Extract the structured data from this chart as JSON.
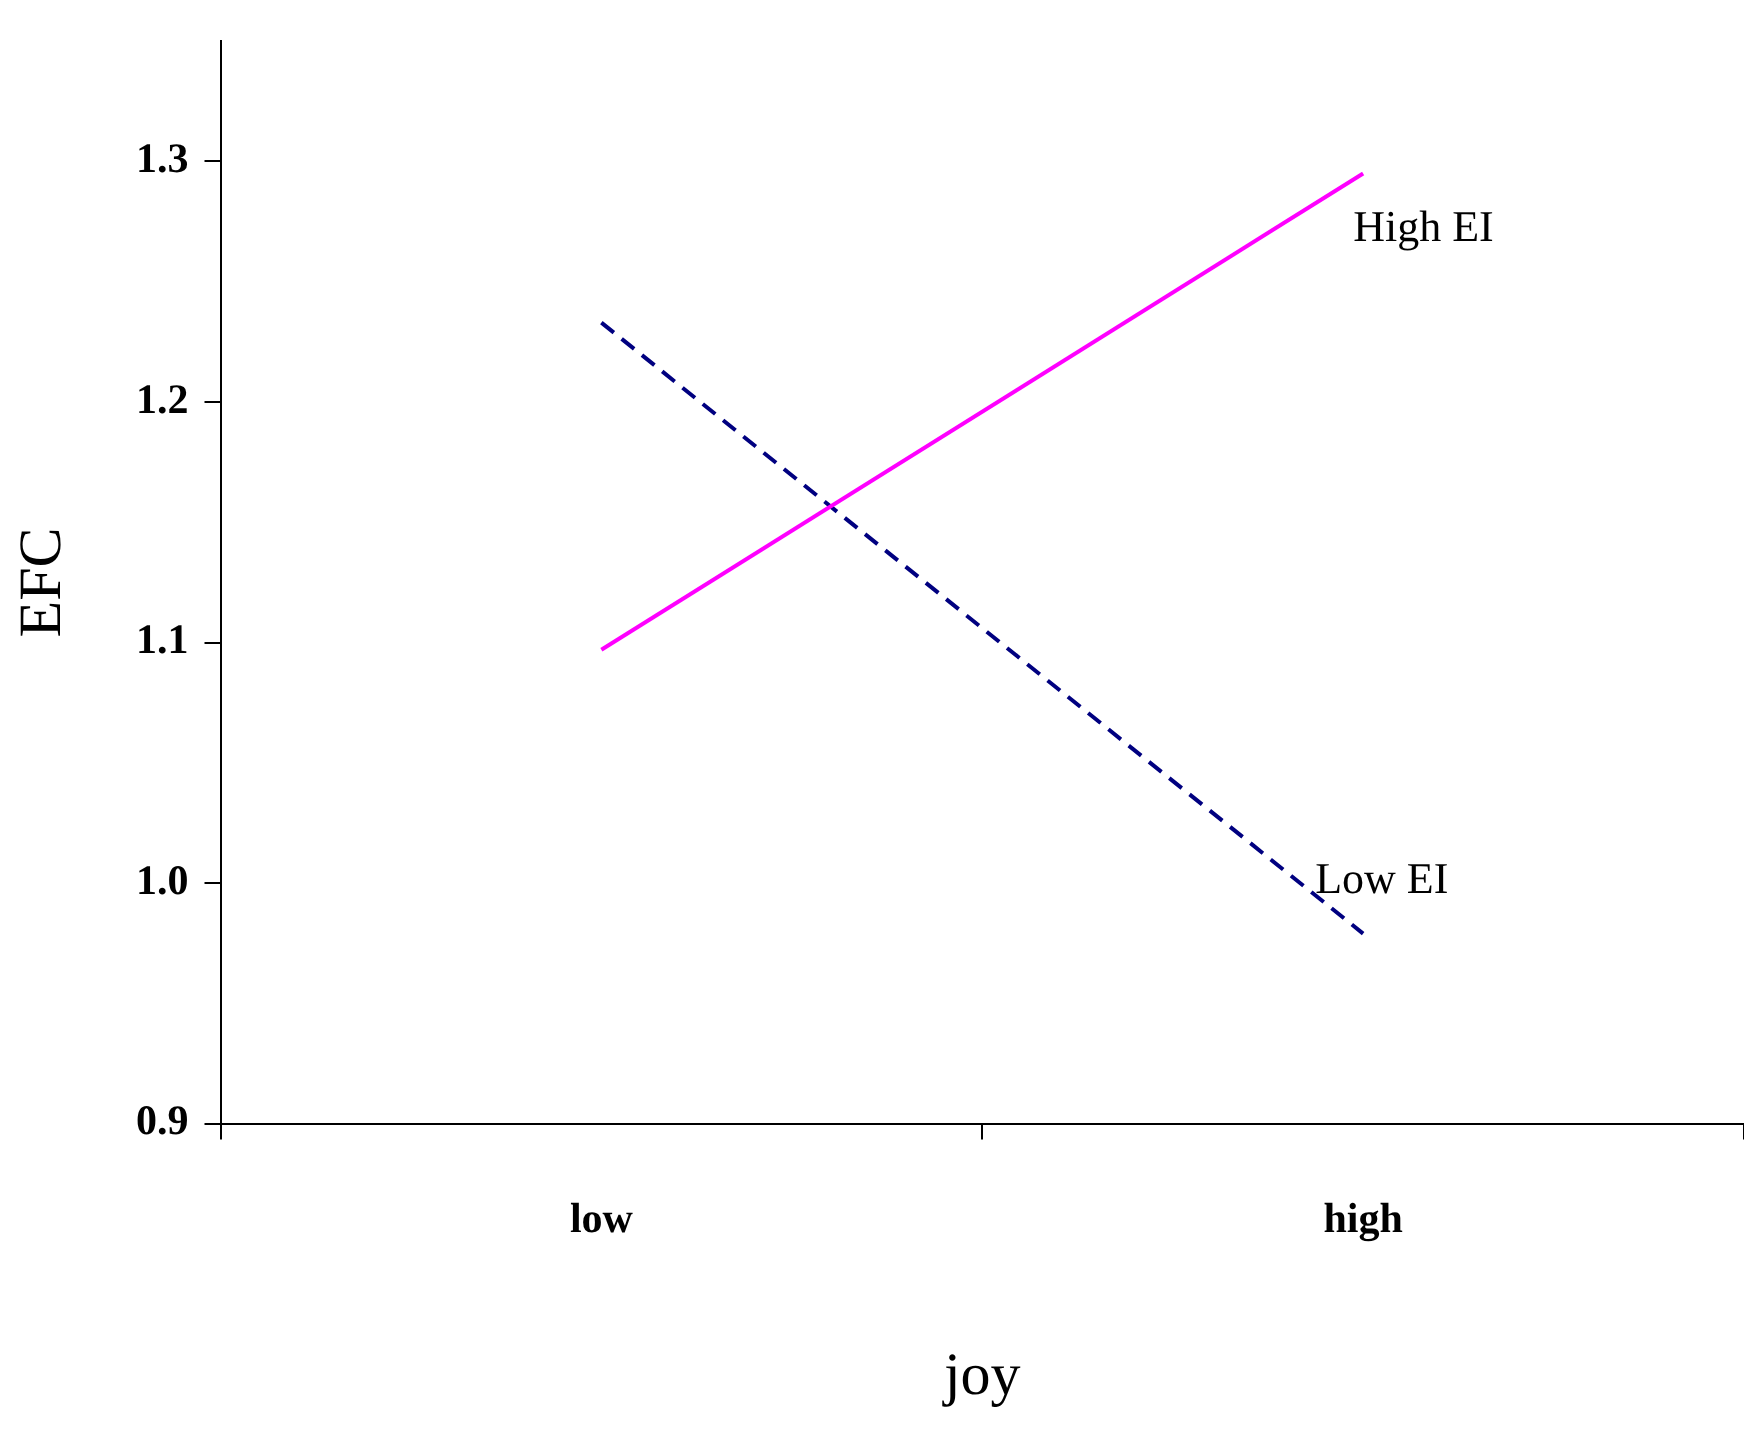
{
  "chart_data": {
    "type": "line",
    "xlabel": "joy",
    "ylabel": "EFC",
    "categories": [
      "low",
      "high"
    ],
    "series": [
      {
        "name": "High EI",
        "color": "#ff00ff",
        "values": [
          1.097,
          1.295
        ],
        "line_style": "solid"
      },
      {
        "name": "Low EI",
        "color": "#000080",
        "values": [
          1.233,
          0.979
        ],
        "line_style": "dashed"
      }
    ],
    "ylim": [
      0.9,
      1.35
    ],
    "yticks": [
      {
        "value": 0.9,
        "label": "0.9"
      },
      {
        "value": 1.0,
        "label": "1.0"
      },
      {
        "value": 1.1,
        "label": "1.1"
      },
      {
        "value": 1.2,
        "label": "1.2"
      },
      {
        "value": 1.3,
        "label": "1.3"
      }
    ],
    "grid": false,
    "legend": false,
    "marker": "none"
  }
}
